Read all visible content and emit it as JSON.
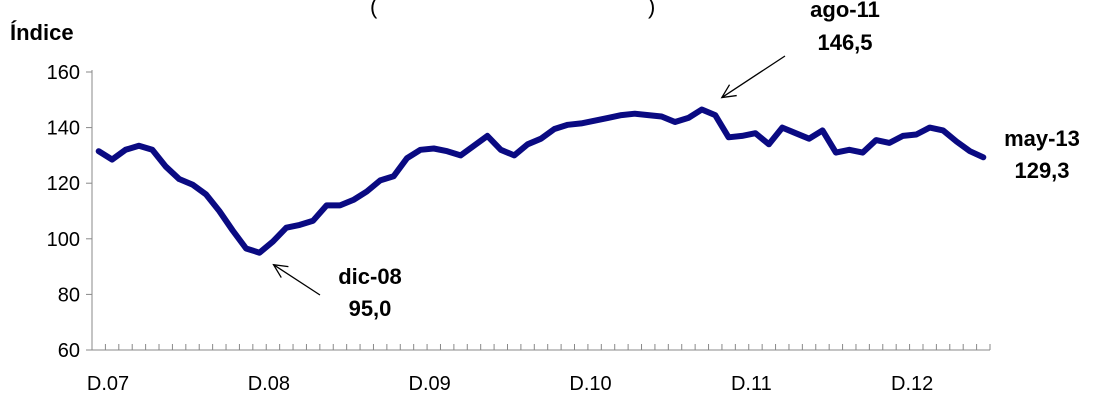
{
  "chart_data": {
    "type": "line",
    "title_fragment_left": "(",
    "title_fragment_right": ")",
    "ylabel": "Índice",
    "ylim": [
      60,
      160
    ],
    "yticks": [
      60,
      80,
      100,
      120,
      140,
      160
    ],
    "ytick_labels": [
      "60",
      "80",
      "100",
      "120",
      "140",
      "160"
    ],
    "x_category_labels": [
      {
        "label": "D.07",
        "index": 0
      },
      {
        "label": "D.08",
        "index": 12
      },
      {
        "label": "D.09",
        "index": 24
      },
      {
        "label": "D.10",
        "index": 36
      },
      {
        "label": "D.11",
        "index": 48
      },
      {
        "label": "D.12",
        "index": 60
      }
    ],
    "line_color": "#0a0a82",
    "series": [
      {
        "values": [
          131.5,
          128.5,
          132,
          133.5,
          132,
          126,
          121.5,
          119.5,
          116,
          110,
          103,
          96.5,
          95,
          99,
          104,
          105,
          106.5,
          112,
          112,
          114,
          117,
          121,
          122.5,
          129,
          132,
          132.5,
          131.5,
          130,
          133.5,
          137,
          132,
          130,
          134,
          136,
          139.5,
          141,
          141.5,
          142.5,
          143.5,
          144.5,
          145,
          144.5,
          144,
          142,
          143.5,
          146.5,
          144.5,
          136.5,
          137,
          138,
          134,
          140,
          138,
          136,
          139,
          131,
          132,
          131,
          135.5,
          134.5,
          137,
          137.5,
          140,
          139,
          135,
          131.5,
          129.3
        ]
      }
    ],
    "annotations": [
      {
        "label": "dic-08",
        "value": "95,0",
        "index": 12
      },
      {
        "label": "ago-11",
        "value": "146,5",
        "index": 45
      },
      {
        "label": "may-13",
        "value": "129,3",
        "index": 66
      }
    ]
  }
}
